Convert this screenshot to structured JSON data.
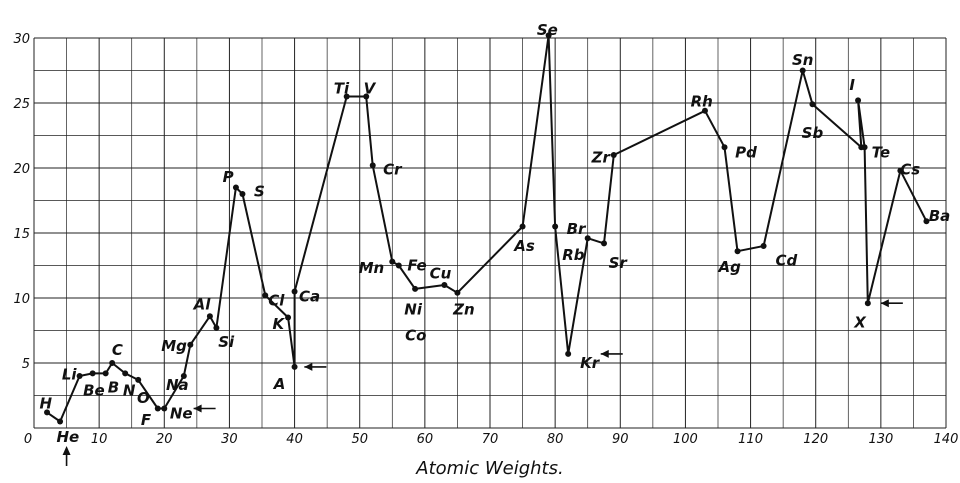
{
  "chart_data": {
    "type": "line",
    "xlabel": "Atomic Weights.",
    "ylabel": "",
    "xlim": [
      0,
      140
    ],
    "ylim": [
      0,
      30
    ],
    "xticks": [
      "0",
      "10",
      "20",
      "30",
      "40",
      "50",
      "60",
      "70",
      "80",
      "90",
      "100",
      "110",
      "120",
      "130",
      "140"
    ],
    "yticks": [
      "5",
      "10",
      "15",
      "20",
      "25",
      "30"
    ],
    "grid": true,
    "line_color": "#111111",
    "series": [
      {
        "points": [
          {
            "x": 2,
            "y": 1.2
          },
          {
            "x": 4,
            "y": 0.5
          },
          {
            "x": 7,
            "y": 4
          },
          {
            "x": 9,
            "y": 4.2
          },
          {
            "x": 11,
            "y": 4.2
          },
          {
            "x": 12,
            "y": 5
          },
          {
            "x": 14,
            "y": 4.2
          },
          {
            "x": 16,
            "y": 3.7
          },
          {
            "x": 19,
            "y": 1.5
          },
          {
            "x": 20,
            "y": 1.5
          },
          {
            "x": 23,
            "y": 4
          },
          {
            "x": 24,
            "y": 6.4
          },
          {
            "x": 27,
            "y": 8.6
          },
          {
            "x": 28,
            "y": 7.7
          },
          {
            "x": 31,
            "y": 18.5
          },
          {
            "x": 32,
            "y": 18
          },
          {
            "x": 35.5,
            "y": 10.2
          },
          {
            "x": 39,
            "y": 8.5
          },
          {
            "x": 40,
            "y": 4.7
          },
          {
            "x": 40,
            "y": 10.5
          },
          {
            "x": 48,
            "y": 25.5
          },
          {
            "x": 51,
            "y": 25.5
          },
          {
            "x": 52,
            "y": 20.2
          },
          {
            "x": 55,
            "y": 12.8
          },
          {
            "x": 56,
            "y": 12.5
          },
          {
            "x": 58.5,
            "y": 10.7
          },
          {
            "x": 63,
            "y": 11
          },
          {
            "x": 65,
            "y": 10.4
          },
          {
            "x": 75,
            "y": 15.5
          },
          {
            "x": 79,
            "y": 30.2
          },
          {
            "x": 80,
            "y": 15.5
          },
          {
            "x": 82,
            "y": 5.7
          },
          {
            "x": 85,
            "y": 14.6
          },
          {
            "x": 87.5,
            "y": 14.2
          },
          {
            "x": 89,
            "y": 21
          },
          {
            "x": 103,
            "y": 24.4
          },
          {
            "x": 106,
            "y": 21.6
          },
          {
            "x": 108,
            "y": 13.6
          },
          {
            "x": 112,
            "y": 14
          },
          {
            "x": 118,
            "y": 27.5
          },
          {
            "x": 119.5,
            "y": 24.9
          },
          {
            "x": 127,
            "y": 21.6
          },
          {
            "x": 126.5,
            "y": 25.2
          },
          {
            "x": 127.5,
            "y": 21.6
          },
          {
            "x": 128,
            "y": 9.6
          },
          {
            "x": 133,
            "y": 19.8
          },
          {
            "x": 137,
            "y": 15.9
          }
        ]
      }
    ],
    "element_labels": [
      {
        "text": "H",
        "x": 1.8,
        "y": 1.9
      },
      {
        "text": "He",
        "x": 5.2,
        "y": -0.7
      },
      {
        "text": "Li",
        "x": 5.4,
        "y": 4.1
      },
      {
        "text": "Be",
        "x": 9.2,
        "y": 2.9
      },
      {
        "text": "B",
        "x": 12.2,
        "y": 3.1
      },
      {
        "text": "N",
        "x": 14.6,
        "y": 2.9
      },
      {
        "text": "O",
        "x": 16.8,
        "y": 2.3
      },
      {
        "text": "C",
        "x": 12.8,
        "y": 6.0
      },
      {
        "text": "F",
        "x": 17.2,
        "y": 0.6
      },
      {
        "text": "Ne",
        "x": 22.6,
        "y": 1.1
      },
      {
        "text": "Na",
        "x": 22.0,
        "y": 3.3
      },
      {
        "text": "Mg",
        "x": 21.5,
        "y": 6.3
      },
      {
        "text": "Al",
        "x": 25.8,
        "y": 9.5
      },
      {
        "text": "Si",
        "x": 29.5,
        "y": 6.6
      },
      {
        "text": "P",
        "x": 29.8,
        "y": 19.3
      },
      {
        "text": "S",
        "x": 34.6,
        "y": 18.2
      },
      {
        "text": "Cl",
        "x": 37.2,
        "y": 9.8
      },
      {
        "text": "K",
        "x": 37.5,
        "y": 8.0
      },
      {
        "text": "Ca",
        "x": 42.3,
        "y": 10.1
      },
      {
        "text": "A",
        "x": 37.7,
        "y": 3.4
      },
      {
        "text": "Ti",
        "x": 47.2,
        "y": 26.1
      },
      {
        "text": "V",
        "x": 51.5,
        "y": 26.1
      },
      {
        "text": "Cr",
        "x": 55.0,
        "y": 19.9
      },
      {
        "text": "Mn",
        "x": 51.8,
        "y": 12.3
      },
      {
        "text": "Fe",
        "x": 58.8,
        "y": 12.5
      },
      {
        "text": "Ni",
        "x": 58.2,
        "y": 9.1
      },
      {
        "text": "Co",
        "x": 58.6,
        "y": 7.1
      },
      {
        "text": "Cu",
        "x": 62.4,
        "y": 11.9
      },
      {
        "text": "Zn",
        "x": 66.0,
        "y": 9.1
      },
      {
        "text": "As",
        "x": 75.3,
        "y": 14.0
      },
      {
        "text": "Se",
        "x": 78.8,
        "y": 30.6
      },
      {
        "text": "Br",
        "x": 83.2,
        "y": 15.3
      },
      {
        "text": "Rb",
        "x": 82.8,
        "y": 13.3
      },
      {
        "text": "Sr",
        "x": 89.6,
        "y": 12.7
      },
      {
        "text": "Kr",
        "x": 85.3,
        "y": 5.0
      },
      {
        "text": "Zr",
        "x": 87.0,
        "y": 20.8
      },
      {
        "text": "Rh",
        "x": 102.5,
        "y": 25.1
      },
      {
        "text": "Pd",
        "x": 109.3,
        "y": 21.2
      },
      {
        "text": "Ag",
        "x": 106.8,
        "y": 12.4
      },
      {
        "text": "Cd",
        "x": 115.5,
        "y": 12.9
      },
      {
        "text": "Sn",
        "x": 118.0,
        "y": 28.3
      },
      {
        "text": "Sb",
        "x": 119.5,
        "y": 22.7
      },
      {
        "text": "I",
        "x": 125.6,
        "y": 26.4
      },
      {
        "text": "Te",
        "x": 130.0,
        "y": 21.2
      },
      {
        "text": "Cs",
        "x": 134.5,
        "y": 19.9
      },
      {
        "text": "Ba",
        "x": 139.0,
        "y": 16.3
      },
      {
        "text": "X",
        "x": 126.8,
        "y": 8.1
      }
    ],
    "marker_arrows": [
      {
        "x": 41.5,
        "y": 4.7
      },
      {
        "x": 24.5,
        "y": 1.5
      },
      {
        "x": 87.0,
        "y": 5.7
      },
      {
        "x": 130.0,
        "y": 9.6
      }
    ],
    "he_arrow": {
      "x": 5.0
    }
  }
}
